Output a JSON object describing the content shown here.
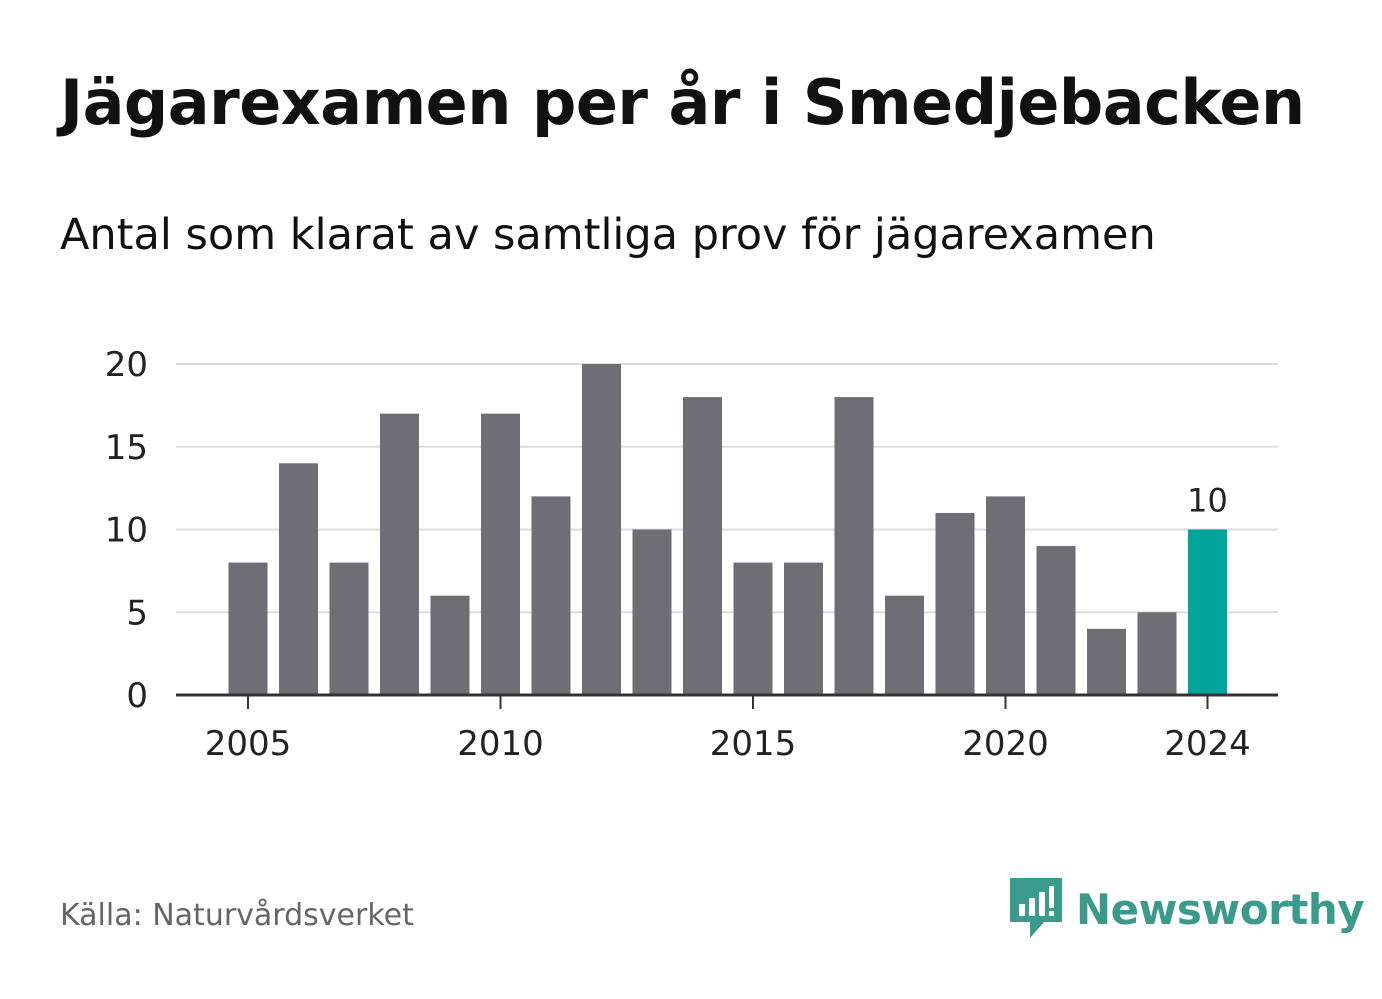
{
  "title": "Jägarexamen per år i Smedjebacken",
  "subtitle": "Antal som klarat av samtliga prov för jägarexamen",
  "source": "Källa: Naturvårdsverket",
  "brand": {
    "name": "Newsworthy",
    "color": "#3a9a8c",
    "icon": "newsworthy-logo-icon"
  },
  "chart_data": {
    "type": "bar",
    "categories": [
      2005,
      2006,
      2007,
      2008,
      2009,
      2010,
      2011,
      2012,
      2013,
      2014,
      2015,
      2016,
      2017,
      2018,
      2019,
      2020,
      2021,
      2022,
      2023,
      2024
    ],
    "values": [
      8,
      14,
      8,
      17,
      6,
      17,
      12,
      20,
      10,
      18,
      8,
      8,
      18,
      6,
      11,
      12,
      9,
      4,
      5,
      10
    ],
    "x_ticks": [
      "2005",
      "2010",
      "2015",
      "2020",
      "2024"
    ],
    "y_ticks": [
      "0",
      "5",
      "10",
      "15",
      "20"
    ],
    "ylim": [
      0,
      20
    ],
    "grid": true,
    "bar_color": "#6f6e74",
    "highlight_color": "#00a49a",
    "highlight_category": 2024,
    "highlight_label": "10"
  }
}
